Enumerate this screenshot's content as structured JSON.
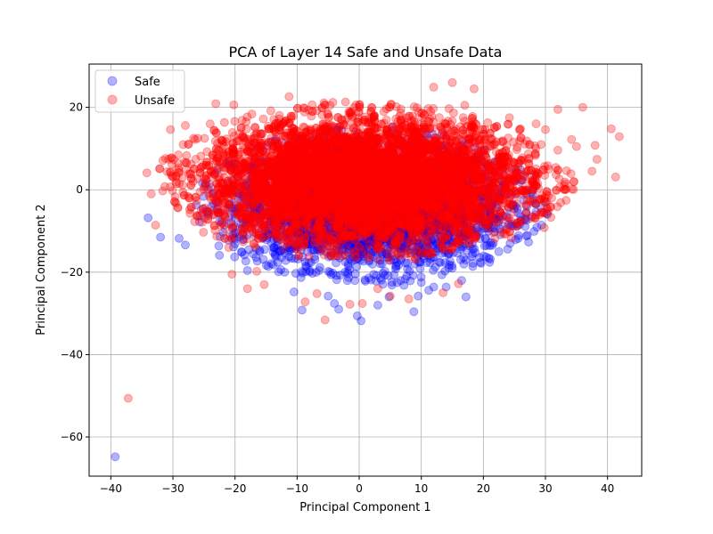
{
  "chart_data": {
    "type": "scatter",
    "title": "PCA of Layer 14 Safe and Unsafe Data",
    "xlabel": "Principal Component 1",
    "ylabel": "Principal Component 2",
    "xlim": [
      -43.5,
      45.5
    ],
    "ylim": [
      -69.5,
      30.5
    ],
    "xticks": [
      -40,
      -30,
      -20,
      -10,
      0,
      10,
      20,
      30,
      40
    ],
    "yticks": [
      -60,
      -40,
      -20,
      0,
      20
    ],
    "xtick_labels": [
      "−40",
      "−30",
      "−20",
      "−10",
      "0",
      "10",
      "20",
      "30",
      "40"
    ],
    "ytick_labels": [
      "−60",
      "−40",
      "−20",
      "0",
      "20"
    ],
    "grid": true,
    "legend": "top-left",
    "series": [
      {
        "name": "Safe",
        "color": "#0000ff",
        "alpha": 0.3,
        "cluster": {
          "center": [
            2,
            -4
          ],
          "spread": [
            11,
            7.5
          ],
          "count": 3500
        },
        "points": [
          [
            -39.3,
            -64.8
          ],
          [
            -34,
            -6.8
          ],
          [
            -32,
            -11.5
          ],
          [
            -29,
            -11.8
          ],
          [
            -28,
            -13.4
          ],
          [
            -22.5,
            -15.9
          ],
          [
            -20,
            -12
          ],
          [
            -18,
            -19.6
          ],
          [
            -16,
            -15
          ],
          [
            -10.5,
            -24.8
          ],
          [
            -9.2,
            -29.2
          ],
          [
            -5,
            -25.8
          ],
          [
            -4,
            -27.6
          ],
          [
            -3.3,
            -29
          ],
          [
            -0.3,
            -30.6
          ],
          [
            0.3,
            -31.8
          ],
          [
            1,
            -22.2
          ],
          [
            3,
            -28
          ],
          [
            4.8,
            -26
          ],
          [
            7.2,
            -23.2
          ],
          [
            8.8,
            -29.6
          ],
          [
            9.5,
            -25.8
          ],
          [
            10,
            -22.5
          ],
          [
            11.2,
            -24.4
          ],
          [
            12,
            -23.6
          ],
          [
            14,
            -23.6
          ],
          [
            17.2,
            -26
          ],
          [
            16.5,
            -22
          ],
          [
            18.3,
            -18.6
          ],
          [
            19.5,
            -17.6
          ],
          [
            21,
            -17.6
          ],
          [
            22.5,
            -15
          ],
          [
            24.3,
            -13
          ],
          [
            26,
            -6.5
          ],
          [
            27,
            -4
          ],
          [
            -25.7,
            -7.8
          ],
          [
            -20,
            -9
          ],
          [
            30,
            -3
          ],
          [
            -12,
            -20
          ],
          [
            15,
            -19
          ]
        ]
      },
      {
        "name": "Unsafe",
        "color": "#ff0000",
        "alpha": 0.3,
        "cluster": {
          "center": [
            1,
            2
          ],
          "spread": [
            13,
            7.5
          ],
          "count": 7000
        },
        "points": [
          [
            -37.2,
            -50.6
          ],
          [
            41.3,
            3.1
          ],
          [
            41.9,
            12.9
          ],
          [
            40.6,
            14.8
          ],
          [
            36,
            20
          ],
          [
            37.5,
            4.5
          ],
          [
            38.3,
            7.4
          ],
          [
            38,
            10.8
          ],
          [
            34.2,
            12.2
          ],
          [
            33.4,
            4.6
          ],
          [
            35,
            10.5
          ],
          [
            32,
            19.5
          ],
          [
            30,
            14.6
          ],
          [
            -34.2,
            4.1
          ],
          [
            -30.4,
            14.6
          ],
          [
            -33.5,
            -1
          ],
          [
            -32.8,
            -8.6
          ],
          [
            -24,
            16
          ],
          [
            -23.1,
            20.9
          ],
          [
            -20.2,
            20.6
          ],
          [
            -11.3,
            22.6
          ],
          [
            -5.5,
            -31.6
          ],
          [
            -1.5,
            -27.8
          ],
          [
            12,
            24.9
          ],
          [
            15,
            26
          ],
          [
            17,
            20.5
          ],
          [
            18.5,
            24.5
          ],
          [
            5,
            -25.8
          ],
          [
            0.5,
            -27.6
          ],
          [
            -18,
            -24
          ],
          [
            -20.5,
            -20.5
          ],
          [
            -15.3,
            -23
          ],
          [
            -8.7,
            -27.2
          ],
          [
            -6.8,
            -25.2
          ],
          [
            3,
            -24
          ],
          [
            8,
            -26.5
          ],
          [
            13.5,
            -25
          ],
          [
            16,
            -22.8
          ],
          [
            -28,
            15.6
          ],
          [
            -26,
            12.5
          ],
          [
            -27.8,
            8.3
          ],
          [
            -31.3,
            0.8
          ],
          [
            28.5,
            16
          ],
          [
            31,
            -2
          ],
          [
            33,
            1
          ],
          [
            29.8,
            -9.2
          ],
          [
            27.5,
            -7
          ],
          [
            24.2,
            17.5
          ],
          [
            -21,
            -14
          ],
          [
            -16.5,
            -19.8
          ]
        ]
      }
    ]
  }
}
